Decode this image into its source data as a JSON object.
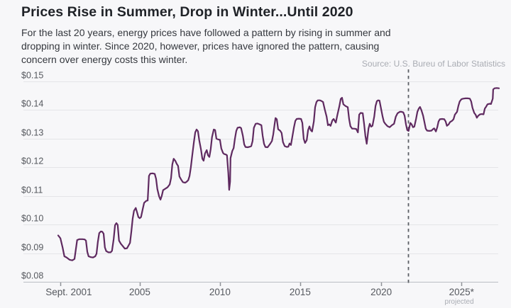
{
  "header": {
    "title": "Prices Rise in Summer, Drop in Winter...Until 2020",
    "subtitle_lines": [
      "For the last 20 years, energy prices have followed a pattern by rising in summer and",
      "dropping in winter. Since 2020, however, prices have ignored the pattern, causing",
      "concern over energy costs this winter."
    ],
    "source": "Source: U.S. Bureu of Labor Statistics"
  },
  "colors": {
    "bg": "#f7f7f9",
    "line": "#5f2a60",
    "grid": "#e4e5e8",
    "axis": "#bbbdc3",
    "tick": "#8e9197",
    "dashed": "#5c6066",
    "text-dark": "#1f2227",
    "text-body": "#35383e",
    "text-axis": "#55585e",
    "text-muted": "#a9acb3"
  },
  "chart_data": {
    "type": "line",
    "ylim": [
      0.08,
      0.15
    ],
    "grid": true,
    "dashed_vline_f": 0.794,
    "y_ticks": [
      {
        "label": "$0.15",
        "v": 0.15
      },
      {
        "label": "$0.14",
        "v": 0.14
      },
      {
        "label": "$0.13",
        "v": 0.13
      },
      {
        "label": "$0.12",
        "v": 0.12
      },
      {
        "label": "$0.11",
        "v": 0.11
      },
      {
        "label": "$0.10",
        "v": 0.1
      },
      {
        "label": "$0.09",
        "v": 0.09
      },
      {
        "label": "$0.08",
        "v": 0.08
      }
    ],
    "x_ticks": [
      {
        "label": "Sept. 2001",
        "f": 0.005,
        "label_f": 0.024
      },
      {
        "label": "2005",
        "f": 0.185
      },
      {
        "label": "2010",
        "f": 0.367
      },
      {
        "label": "2015",
        "f": 0.549
      },
      {
        "label": "2020",
        "f": 0.733
      },
      {
        "label": "2025*",
        "f": 0.915,
        "sub_label": "projected",
        "sub_f": 0.91
      }
    ],
    "points": [
      [
        0.0,
        0.0962
      ],
      [
        0.005,
        0.0952
      ],
      [
        0.01,
        0.092
      ],
      [
        0.014,
        0.0889
      ],
      [
        0.019,
        0.0885
      ],
      [
        0.026,
        0.0877
      ],
      [
        0.032,
        0.0875
      ],
      [
        0.037,
        0.088
      ],
      [
        0.04,
        0.0912
      ],
      [
        0.043,
        0.0946
      ],
      [
        0.048,
        0.0949
      ],
      [
        0.055,
        0.0949
      ],
      [
        0.06,
        0.0948
      ],
      [
        0.063,
        0.0944
      ],
      [
        0.066,
        0.0905
      ],
      [
        0.069,
        0.0889
      ],
      [
        0.074,
        0.0886
      ],
      [
        0.079,
        0.0885
      ],
      [
        0.084,
        0.0889
      ],
      [
        0.087,
        0.0898
      ],
      [
        0.09,
        0.094
      ],
      [
        0.093,
        0.097
      ],
      [
        0.097,
        0.0976
      ],
      [
        0.1,
        0.0975
      ],
      [
        0.103,
        0.0968
      ],
      [
        0.106,
        0.092
      ],
      [
        0.109,
        0.0907
      ],
      [
        0.114,
        0.0903
      ],
      [
        0.119,
        0.0903
      ],
      [
        0.122,
        0.0908
      ],
      [
        0.126,
        0.095
      ],
      [
        0.129,
        0.0998
      ],
      [
        0.132,
        0.1005
      ],
      [
        0.135,
        0.0999
      ],
      [
        0.138,
        0.0944
      ],
      [
        0.142,
        0.0933
      ],
      [
        0.147,
        0.0924
      ],
      [
        0.151,
        0.0916
      ],
      [
        0.156,
        0.0917
      ],
      [
        0.159,
        0.0925
      ],
      [
        0.163,
        0.0936
      ],
      [
        0.166,
        0.0976
      ],
      [
        0.169,
        0.102
      ],
      [
        0.172,
        0.1048
      ],
      [
        0.176,
        0.1058
      ],
      [
        0.179,
        0.1042
      ],
      [
        0.182,
        0.1026
      ],
      [
        0.185,
        0.1022
      ],
      [
        0.188,
        0.1026
      ],
      [
        0.192,
        0.1055
      ],
      [
        0.195,
        0.1076
      ],
      [
        0.2,
        0.1083
      ],
      [
        0.203,
        0.1084
      ],
      [
        0.206,
        0.117
      ],
      [
        0.209,
        0.1178
      ],
      [
        0.214,
        0.1179
      ],
      [
        0.219,
        0.1177
      ],
      [
        0.222,
        0.116
      ],
      [
        0.225,
        0.1124
      ],
      [
        0.229,
        0.1098
      ],
      [
        0.232,
        0.1087
      ],
      [
        0.235,
        0.11
      ],
      [
        0.238,
        0.112
      ],
      [
        0.243,
        0.1125
      ],
      [
        0.248,
        0.113
      ],
      [
        0.253,
        0.114
      ],
      [
        0.256,
        0.1162
      ],
      [
        0.259,
        0.121
      ],
      [
        0.262,
        0.123
      ],
      [
        0.266,
        0.1222
      ],
      [
        0.269,
        0.1212
      ],
      [
        0.272,
        0.1205
      ],
      [
        0.275,
        0.1168
      ],
      [
        0.279,
        0.1157
      ],
      [
        0.283,
        0.1148
      ],
      [
        0.288,
        0.1146
      ],
      [
        0.291,
        0.1149
      ],
      [
        0.295,
        0.1155
      ],
      [
        0.298,
        0.117
      ],
      [
        0.301,
        0.12
      ],
      [
        0.304,
        0.124
      ],
      [
        0.308,
        0.129
      ],
      [
        0.311,
        0.1322
      ],
      [
        0.314,
        0.1332
      ],
      [
        0.317,
        0.1326
      ],
      [
        0.32,
        0.1295
      ],
      [
        0.324,
        0.1262
      ],
      [
        0.327,
        0.123
      ],
      [
        0.33,
        0.1223
      ],
      [
        0.333,
        0.1248
      ],
      [
        0.337,
        0.126
      ],
      [
        0.34,
        0.1242
      ],
      [
        0.343,
        0.1236
      ],
      [
        0.346,
        0.1264
      ],
      [
        0.349,
        0.1305
      ],
      [
        0.353,
        0.1332
      ],
      [
        0.356,
        0.133
      ],
      [
        0.359,
        0.13
      ],
      [
        0.364,
        0.1297
      ],
      [
        0.367,
        0.1296
      ],
      [
        0.37,
        0.1266
      ],
      [
        0.374,
        0.125
      ],
      [
        0.377,
        0.1246
      ],
      [
        0.38,
        0.1245
      ],
      [
        0.383,
        0.1242
      ],
      [
        0.386,
        0.118
      ],
      [
        0.388,
        0.1121
      ],
      [
        0.39,
        0.115
      ],
      [
        0.391,
        0.1232
      ],
      [
        0.395,
        0.1257
      ],
      [
        0.398,
        0.1267
      ],
      [
        0.401,
        0.13
      ],
      [
        0.404,
        0.1327
      ],
      [
        0.407,
        0.1338
      ],
      [
        0.412,
        0.134
      ],
      [
        0.415,
        0.1337
      ],
      [
        0.419,
        0.131
      ],
      [
        0.422,
        0.128
      ],
      [
        0.425,
        0.1271
      ],
      [
        0.43,
        0.127
      ],
      [
        0.435,
        0.1272
      ],
      [
        0.438,
        0.1274
      ],
      [
        0.441,
        0.1292
      ],
      [
        0.444,
        0.1338
      ],
      [
        0.448,
        0.1352
      ],
      [
        0.452,
        0.1353
      ],
      [
        0.457,
        0.135
      ],
      [
        0.461,
        0.1347
      ],
      [
        0.464,
        0.131
      ],
      [
        0.467,
        0.1282
      ],
      [
        0.47,
        0.1271
      ],
      [
        0.475,
        0.127
      ],
      [
        0.478,
        0.1276
      ],
      [
        0.481,
        0.1282
      ],
      [
        0.485,
        0.1292
      ],
      [
        0.488,
        0.1315
      ],
      [
        0.491,
        0.135
      ],
      [
        0.493,
        0.1372
      ],
      [
        0.496,
        0.1368
      ],
      [
        0.499,
        0.1333
      ],
      [
        0.504,
        0.1327
      ],
      [
        0.507,
        0.132
      ],
      [
        0.51,
        0.1288
      ],
      [
        0.514,
        0.1274
      ],
      [
        0.519,
        0.1271
      ],
      [
        0.522,
        0.1272
      ],
      [
        0.525,
        0.1283
      ],
      [
        0.528,
        0.1278
      ],
      [
        0.531,
        0.1305
      ],
      [
        0.535,
        0.134
      ],
      [
        0.538,
        0.1362
      ],
      [
        0.541,
        0.1369
      ],
      [
        0.546,
        0.137
      ],
      [
        0.551,
        0.1369
      ],
      [
        0.554,
        0.1355
      ],
      [
        0.557,
        0.13
      ],
      [
        0.56,
        0.1285
      ],
      [
        0.564,
        0.1295
      ],
      [
        0.567,
        0.133
      ],
      [
        0.57,
        0.1343
      ],
      [
        0.573,
        0.133
      ],
      [
        0.576,
        0.1325
      ],
      [
        0.58,
        0.136
      ],
      [
        0.583,
        0.141
      ],
      [
        0.586,
        0.1428
      ],
      [
        0.589,
        0.1434
      ],
      [
        0.594,
        0.1434
      ],
      [
        0.597,
        0.1432
      ],
      [
        0.601,
        0.1428
      ],
      [
        0.605,
        0.1401
      ],
      [
        0.609,
        0.1377
      ],
      [
        0.612,
        0.1347
      ],
      [
        0.615,
        0.135
      ],
      [
        0.618,
        0.1345
      ],
      [
        0.622,
        0.1364
      ],
      [
        0.625,
        0.1369
      ],
      [
        0.63,
        0.1356
      ],
      [
        0.633,
        0.138
      ],
      [
        0.638,
        0.1414
      ],
      [
        0.641,
        0.1439
      ],
      [
        0.644,
        0.1443
      ],
      [
        0.647,
        0.142
      ],
      [
        0.652,
        0.1414
      ],
      [
        0.657,
        0.141
      ],
      [
        0.66,
        0.1369
      ],
      [
        0.663,
        0.1344
      ],
      [
        0.667,
        0.1335
      ],
      [
        0.671,
        0.1335
      ],
      [
        0.676,
        0.1334
      ],
      [
        0.68,
        0.1322
      ],
      [
        0.683,
        0.1384
      ],
      [
        0.686,
        0.139
      ],
      [
        0.691,
        0.1389
      ],
      [
        0.694,
        0.1352
      ],
      [
        0.697,
        0.131
      ],
      [
        0.7,
        0.1282
      ],
      [
        0.704,
        0.1335
      ],
      [
        0.707,
        0.1352
      ],
      [
        0.71,
        0.1342
      ],
      [
        0.713,
        0.1345
      ],
      [
        0.717,
        0.1377
      ],
      [
        0.72,
        0.1414
      ],
      [
        0.723,
        0.1431
      ],
      [
        0.726,
        0.1434
      ],
      [
        0.729,
        0.1433
      ],
      [
        0.733,
        0.1401
      ],
      [
        0.736,
        0.1377
      ],
      [
        0.739,
        0.1359
      ],
      [
        0.742,
        0.1352
      ],
      [
        0.747,
        0.1344
      ],
      [
        0.752,
        0.134
      ],
      [
        0.757,
        0.1347
      ],
      [
        0.762,
        0.1352
      ],
      [
        0.766,
        0.1377
      ],
      [
        0.77,
        0.1389
      ],
      [
        0.775,
        0.1394
      ],
      [
        0.779,
        0.1394
      ],
      [
        0.783,
        0.1392
      ],
      [
        0.786,
        0.138
      ],
      [
        0.789,
        0.135
      ],
      [
        0.792,
        0.133
      ],
      [
        0.795,
        0.1327
      ],
      [
        0.799,
        0.1355
      ],
      [
        0.802,
        0.135
      ],
      [
        0.805,
        0.134
      ],
      [
        0.808,
        0.1342
      ],
      [
        0.812,
        0.137
      ],
      [
        0.815,
        0.1394
      ],
      [
        0.818,
        0.1405
      ],
      [
        0.821,
        0.1411
      ],
      [
        0.824,
        0.14
      ],
      [
        0.828,
        0.138
      ],
      [
        0.831,
        0.1357
      ],
      [
        0.834,
        0.1335
      ],
      [
        0.837,
        0.1328
      ],
      [
        0.842,
        0.1327
      ],
      [
        0.847,
        0.1328
      ],
      [
        0.85,
        0.1333
      ],
      [
        0.853,
        0.1336
      ],
      [
        0.857,
        0.1325
      ],
      [
        0.86,
        0.134
      ],
      [
        0.863,
        0.136
      ],
      [
        0.866,
        0.1368
      ],
      [
        0.871,
        0.1369
      ],
      [
        0.876,
        0.1368
      ],
      [
        0.879,
        0.136
      ],
      [
        0.882,
        0.1345
      ],
      [
        0.886,
        0.135
      ],
      [
        0.889,
        0.1358
      ],
      [
        0.894,
        0.1363
      ],
      [
        0.897,
        0.1368
      ],
      [
        0.9,
        0.1384
      ],
      [
        0.905,
        0.1394
      ],
      [
        0.908,
        0.1415
      ],
      [
        0.911,
        0.143
      ],
      [
        0.915,
        0.1438
      ],
      [
        0.919,
        0.144
      ],
      [
        0.924,
        0.1441
      ],
      [
        0.929,
        0.1441
      ],
      [
        0.934,
        0.144
      ],
      [
        0.937,
        0.143
      ],
      [
        0.94,
        0.1408
      ],
      [
        0.944,
        0.139
      ],
      [
        0.947,
        0.1384
      ],
      [
        0.95,
        0.1373
      ],
      [
        0.953,
        0.138
      ],
      [
        0.957,
        0.1385
      ],
      [
        0.961,
        0.1386
      ],
      [
        0.965,
        0.1385
      ],
      [
        0.968,
        0.1405
      ],
      [
        0.971,
        0.1412
      ],
      [
        0.974,
        0.142
      ],
      [
        0.979,
        0.1422
      ],
      [
        0.982,
        0.1421
      ],
      [
        0.986,
        0.144
      ],
      [
        0.987,
        0.1472
      ],
      [
        0.99,
        0.1476
      ],
      [
        0.995,
        0.1477
      ],
      [
        1.0,
        0.1476
      ]
    ]
  }
}
